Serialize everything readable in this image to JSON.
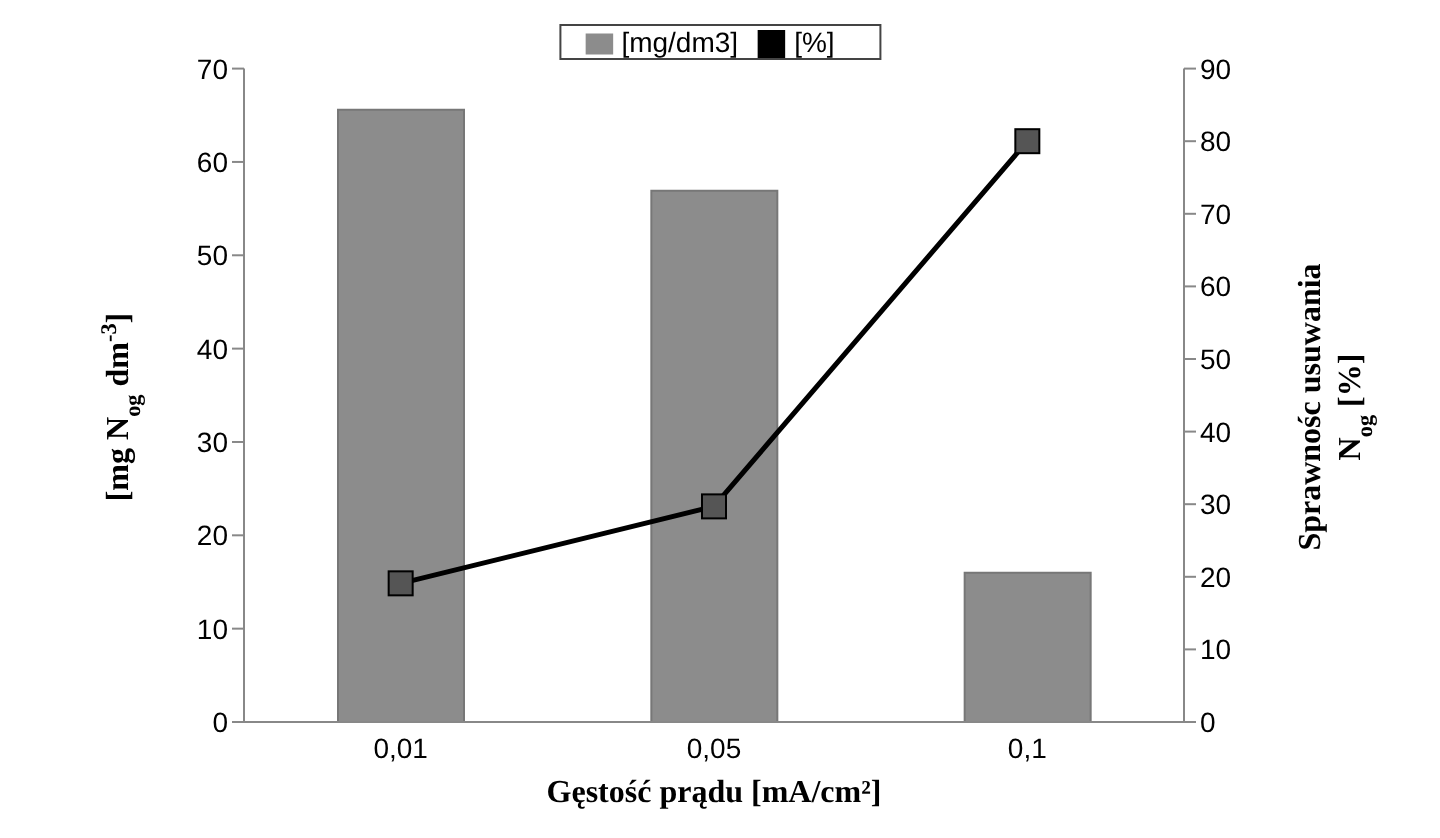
{
  "chart_data": {
    "type": "bar",
    "xlabel": "Gęstość prądu [mA/cm²]",
    "ylabel": "[mg N$_{og}$ dm$^{-3}$]",
    "y2label": "Sprawnośc usuwania N$_{og}$ [%]",
    "categories": [
      "0,01",
      "0,05",
      "0,1"
    ],
    "series": [
      {
        "name": "[mg/dm3]",
        "color": "#8c8c8c",
        "values": [
          65.6,
          56.9,
          16.0
        ]
      },
      {
        "name": "[%]",
        "type": "line",
        "axis": "y2",
        "color": "#000000",
        "marker": "square",
        "values": [
          19.1,
          29.7,
          80.0
        ]
      }
    ],
    "ylim": [
      0,
      70
    ],
    "yticks": [
      0,
      10,
      20,
      30,
      40,
      50,
      60,
      70
    ],
    "y2lim": [
      0,
      90
    ],
    "y2ticks": [
      0,
      10,
      20,
      30,
      40,
      50,
      60,
      70,
      80,
      90
    ],
    "grid": false,
    "legend": "top"
  }
}
